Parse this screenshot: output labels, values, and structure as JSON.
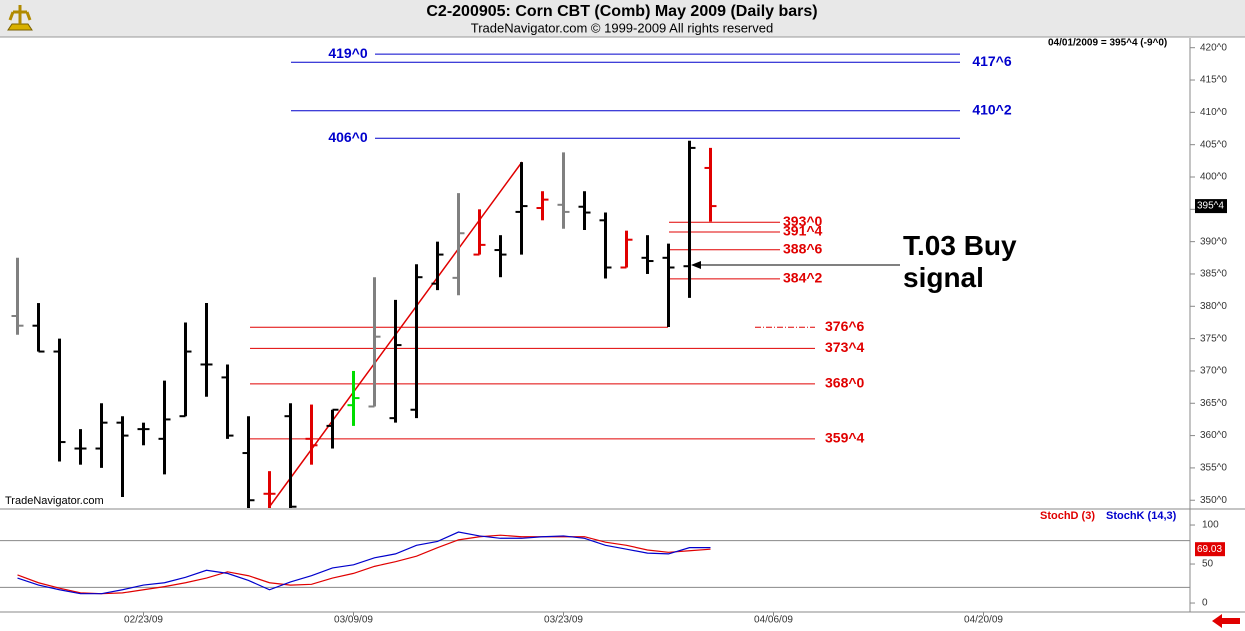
{
  "chart_data": [
    {
      "type": "ohlc",
      "title": "C2-200905:  Corn CBT (Comb) May 2009  (Daily bars)",
      "subtitle": "TradeNavigator.com © 1999-2009 All rights reserved",
      "watermark": "TradeNavigator.com",
      "quote": "04/01/2009 = 395^4 (-9^0)",
      "annotation": "T.03 Buy signal",
      "categories": [
        null,
        null,
        null,
        null,
        null,
        null,
        "02/23/09",
        null,
        null,
        null,
        null,
        null,
        null,
        null,
        null,
        null,
        "03/09/09",
        null,
        null,
        null,
        null,
        null,
        null,
        null,
        null,
        null,
        "03/23/09",
        null,
        null,
        null,
        null,
        null,
        null,
        null,
        null,
        null,
        "04/06/09",
        null,
        null,
        null,
        null,
        null,
        null,
        null,
        null,
        null,
        "04/20/09",
        null,
        null,
        null,
        null,
        null,
        null,
        null,
        null
      ],
      "open": [
        378.5,
        377,
        373,
        358,
        358,
        362,
        361,
        359.5,
        363,
        371,
        369,
        357.3,
        351,
        363,
        359.5,
        361.5,
        364.7,
        364.5,
        362.7,
        364,
        383.5,
        384.4,
        388,
        388.7,
        394.6,
        395.2,
        395.7,
        395.4,
        393.3,
        386,
        387.5,
        387.5,
        386.2,
        401.4,
        null,
        null,
        null,
        null,
        null,
        null,
        null,
        null,
        null,
        null,
        null,
        null,
        null,
        null,
        null,
        null,
        null,
        null,
        null,
        null,
        null
      ],
      "high": [
        387.5,
        380.5,
        375,
        361,
        365,
        363,
        362,
        368.5,
        377.5,
        380.5,
        371,
        363,
        354.5,
        365,
        364.8,
        364,
        370,
        384.5,
        381,
        386.5,
        390,
        397.5,
        395,
        391,
        402.3,
        397.8,
        403.8,
        397.8,
        394.5,
        391.7,
        391,
        389.7,
        405.6,
        404.5,
        null,
        null,
        null,
        null,
        null,
        null,
        null,
        null,
        null,
        null,
        null,
        null,
        null,
        null,
        null,
        null,
        null,
        null,
        null,
        null,
        null
      ],
      "low": [
        375.6,
        373,
        356,
        355.5,
        355,
        350.5,
        358.5,
        354,
        363,
        366,
        359.5,
        348.5,
        348.5,
        348.5,
        355.5,
        358,
        361.5,
        364.5,
        362,
        362.7,
        382.5,
        381.7,
        388,
        384.5,
        388,
        393.3,
        392,
        391.8,
        384.3,
        386,
        385,
        376.8,
        381.3,
        393.1,
        null,
        null,
        null,
        null,
        null,
        null,
        null,
        null,
        null,
        null,
        null,
        null,
        null,
        null,
        null,
        null,
        null,
        null,
        null,
        null,
        null
      ],
      "close": [
        377,
        373,
        359,
        358,
        362,
        360,
        361,
        362.5,
        373,
        371,
        360,
        350,
        351,
        349,
        358.5,
        364,
        365.8,
        375.3,
        374,
        384.5,
        388,
        391.3,
        389.5,
        388,
        395.5,
        396.5,
        394.6,
        394.5,
        386,
        390.3,
        387,
        386,
        404.5,
        395.5,
        null,
        null,
        null,
        null,
        null,
        null,
        null,
        null,
        null,
        null,
        null,
        null,
        null,
        null,
        null,
        null,
        null,
        null,
        null,
        null,
        null
      ],
      "bar_colors": [
        "#808080",
        "#000000",
        "#000000",
        "#000000",
        "#000000",
        "#000000",
        "#000000",
        "#000000",
        "#000000",
        "#000000",
        "#000000",
        "#000000",
        "#e00000",
        "#000000",
        "#e00000",
        "#000000",
        "#00dd00",
        "#808080",
        "#000000",
        "#000000",
        "#000000",
        "#808080",
        "#e00000",
        "#000000",
        "#000000",
        "#e00000",
        "#808080",
        "#000000",
        "#000000",
        "#e00000",
        "#000000",
        "#000000",
        "#000000",
        "#e00000",
        null,
        null,
        null,
        null,
        null,
        null,
        null,
        null,
        null,
        null,
        null,
        null,
        null,
        null,
        null,
        null,
        null,
        null,
        null,
        null,
        null
      ],
      "ylim": [
        348.8,
        421.5
      ],
      "yticks": [
        {
          "value": 350,
          "label": "350^0"
        },
        {
          "value": 355,
          "label": "355^0"
        },
        {
          "value": 360,
          "label": "360^0"
        },
        {
          "value": 365,
          "label": "365^0"
        },
        {
          "value": 370,
          "label": "370^0"
        },
        {
          "value": 375,
          "label": "375^0"
        },
        {
          "value": 380,
          "label": "380^0"
        },
        {
          "value": 385,
          "label": "385^0"
        },
        {
          "value": 390,
          "label": "390^0"
        },
        {
          "value": 395,
          "label": "395^0"
        },
        {
          "value": 400,
          "label": "400^0"
        },
        {
          "value": 405,
          "label": "405^0"
        },
        {
          "value": 410,
          "label": "410^0"
        },
        {
          "value": 415,
          "label": "415^0"
        },
        {
          "value": 420,
          "label": "420^0"
        }
      ],
      "last_price": {
        "value": 395.5,
        "label": "395^4"
      },
      "levels": [
        {
          "value": 419,
          "label": "419^0",
          "color": "#0000cc"
        },
        {
          "value": 417.75,
          "label": "417^6",
          "color": "#0000cc"
        },
        {
          "value": 410.25,
          "label": "410^2",
          "color": "#0000cc"
        },
        {
          "value": 406,
          "label": "406^0",
          "color": "#0000cc"
        },
        {
          "value": 393,
          "label": "393^0",
          "color": "#e00000"
        },
        {
          "value": 391.5,
          "label": "391^4",
          "color": "#e00000"
        },
        {
          "value": 388.75,
          "label": "388^6",
          "color": "#e00000"
        },
        {
          "value": 384.25,
          "label": "384^2",
          "color": "#e00000"
        },
        {
          "value": 376.75,
          "label": "376^6",
          "color": "#e00000"
        },
        {
          "value": 373.5,
          "label": "373^4",
          "color": "#e00000"
        },
        {
          "value": 368,
          "label": "368^0",
          "color": "#e00000"
        },
        {
          "value": 359.5,
          "label": "359^4",
          "color": "#e00000"
        }
      ]
    },
    {
      "type": "line",
      "series": [
        {
          "name": "StochD (3)",
          "color": "#e00000",
          "values": [
            36,
            26,
            19,
            13,
            12,
            13,
            17,
            21,
            26,
            32,
            40,
            35,
            26,
            23,
            24,
            32,
            38,
            47,
            53,
            60,
            71,
            81,
            85,
            87,
            85,
            85,
            85,
            85,
            78,
            74,
            68,
            65,
            67,
            69.03,
            null,
            null,
            null,
            null,
            null,
            null,
            null,
            null,
            null,
            null,
            null,
            null,
            null,
            null,
            null,
            null,
            null,
            null,
            null,
            null,
            null
          ]
        },
        {
          "name": "StochK (14,3)",
          "color": "#0000cc",
          "values": [
            32,
            23,
            17,
            12,
            12,
            17,
            23,
            26,
            33,
            42,
            38,
            29,
            17,
            27,
            35,
            45,
            49,
            58,
            63,
            74,
            79,
            91,
            86,
            83,
            83,
            85,
            86,
            83,
            74,
            69,
            64,
            63,
            71,
            71,
            null,
            null,
            null,
            null,
            null,
            null,
            null,
            null,
            null,
            null,
            null,
            null,
            null,
            null,
            null,
            null,
            null,
            null,
            null,
            null,
            null
          ]
        }
      ],
      "ylim": [
        -11.5,
        116.7
      ],
      "yticks": [
        0,
        50,
        100
      ],
      "reference_lines": [
        20,
        80
      ]
    }
  ]
}
